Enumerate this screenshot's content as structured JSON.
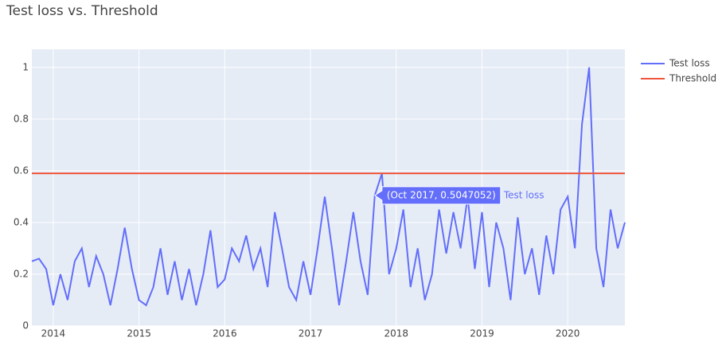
{
  "chart_data": {
    "type": "line",
    "title": "Test loss vs. Threshold",
    "x": [
      "2013-10",
      "2013-11",
      "2013-12",
      "2014-01",
      "2014-02",
      "2014-03",
      "2014-04",
      "2014-05",
      "2014-06",
      "2014-07",
      "2014-08",
      "2014-09",
      "2014-10",
      "2014-11",
      "2014-12",
      "2015-01",
      "2015-02",
      "2015-03",
      "2015-04",
      "2015-05",
      "2015-06",
      "2015-07",
      "2015-08",
      "2015-09",
      "2015-10",
      "2015-11",
      "2015-12",
      "2016-01",
      "2016-02",
      "2016-03",
      "2016-04",
      "2016-05",
      "2016-06",
      "2016-07",
      "2016-08",
      "2016-09",
      "2016-10",
      "2016-11",
      "2016-12",
      "2017-01",
      "2017-02",
      "2017-03",
      "2017-04",
      "2017-05",
      "2017-06",
      "2017-07",
      "2017-08",
      "2017-09",
      "2017-10",
      "2017-11",
      "2017-12",
      "2018-01",
      "2018-02",
      "2018-03",
      "2018-04",
      "2018-05",
      "2018-06",
      "2018-07",
      "2018-08",
      "2018-09",
      "2018-10",
      "2018-11",
      "2018-12",
      "2019-01",
      "2019-02",
      "2019-03",
      "2019-04",
      "2019-05",
      "2019-06",
      "2019-07",
      "2019-08",
      "2019-09",
      "2019-10",
      "2019-11",
      "2019-12",
      "2020-01",
      "2020-02",
      "2020-03",
      "2020-04",
      "2020-05",
      "2020-06",
      "2020-07",
      "2020-08",
      "2020-09"
    ],
    "series": [
      {
        "name": "Test loss",
        "color": "#636efa",
        "values": [
          0.25,
          0.26,
          0.22,
          0.08,
          0.2,
          0.1,
          0.25,
          0.3,
          0.15,
          0.27,
          0.2,
          0.08,
          0.22,
          0.38,
          0.22,
          0.1,
          0.08,
          0.15,
          0.3,
          0.12,
          0.25,
          0.1,
          0.22,
          0.08,
          0.2,
          0.37,
          0.15,
          0.18,
          0.3,
          0.25,
          0.35,
          0.22,
          0.3,
          0.15,
          0.44,
          0.3,
          0.15,
          0.1,
          0.25,
          0.12,
          0.3,
          0.5,
          0.3,
          0.08,
          0.25,
          0.44,
          0.25,
          0.12,
          0.5047052,
          0.59,
          0.2,
          0.3,
          0.45,
          0.15,
          0.3,
          0.1,
          0.2,
          0.45,
          0.28,
          0.44,
          0.3,
          0.5,
          0.22,
          0.44,
          0.15,
          0.4,
          0.3,
          0.1,
          0.42,
          0.2,
          0.3,
          0.12,
          0.35,
          0.2,
          0.45,
          0.5,
          0.3,
          0.78,
          1.0,
          0.3,
          0.15,
          0.45,
          0.3,
          0.4
        ]
      },
      {
        "name": "Threshold",
        "color": "#ef553b",
        "values": [
          0.59,
          0.59,
          0.59,
          0.59,
          0.59,
          0.59,
          0.59,
          0.59,
          0.59,
          0.59,
          0.59,
          0.59,
          0.59,
          0.59,
          0.59,
          0.59,
          0.59,
          0.59,
          0.59,
          0.59,
          0.59,
          0.59,
          0.59,
          0.59,
          0.59,
          0.59,
          0.59,
          0.59,
          0.59,
          0.59,
          0.59,
          0.59,
          0.59,
          0.59,
          0.59,
          0.59,
          0.59,
          0.59,
          0.59,
          0.59,
          0.59,
          0.59,
          0.59,
          0.59,
          0.59,
          0.59,
          0.59,
          0.59,
          0.59,
          0.59,
          0.59,
          0.59,
          0.59,
          0.59,
          0.59,
          0.59,
          0.59,
          0.59,
          0.59,
          0.59,
          0.59,
          0.59,
          0.59,
          0.59,
          0.59,
          0.59,
          0.59,
          0.59,
          0.59,
          0.59,
          0.59,
          0.59,
          0.59,
          0.59,
          0.59,
          0.59,
          0.59,
          0.59,
          0.59,
          0.59,
          0.59,
          0.59,
          0.59,
          0.59
        ]
      }
    ],
    "xlim": [
      "2013-10",
      "2020-09"
    ],
    "xticks": [
      "2014",
      "2015",
      "2016",
      "2017",
      "2018",
      "2019",
      "2020"
    ],
    "ylim": [
      0,
      1.07
    ],
    "yticks": [
      0,
      0.2,
      0.4,
      0.6,
      0.8,
      1
    ],
    "grid": true,
    "hover": {
      "x": "2017-10",
      "y": 0.5047052,
      "text": "(Oct 2017, 0.5047052)",
      "name": "Test loss"
    }
  }
}
